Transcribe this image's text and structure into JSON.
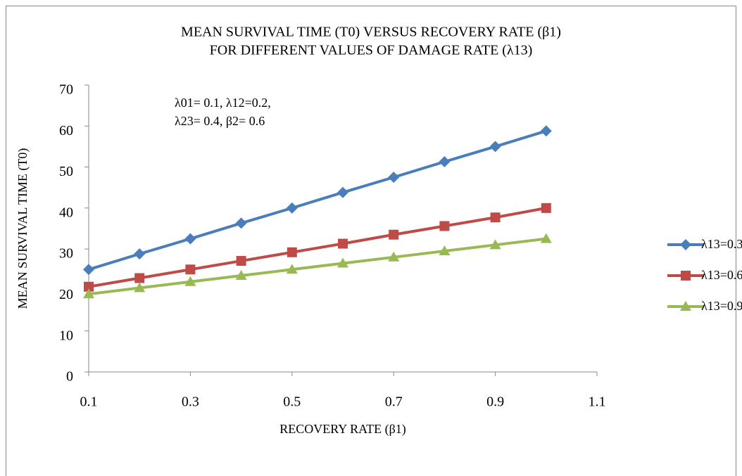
{
  "chart_data": {
    "type": "line",
    "title": [
      "MEAN SURVIVAL TIME (T0) VERSUS RECOVERY RATE (β1)",
      "FOR DIFFERENT VALUES OF DAMAGE RATE (λ13)"
    ],
    "annotation": [
      "λ01= 0.1, λ12=0.2,",
      "λ23= 0.4, β2= 0.6"
    ],
    "x_label": "RECOVERY RATE (β1)",
    "y_label": "MEAN SURVIVAL TIME (T0)",
    "x": [
      0.1,
      0.2,
      0.3,
      0.4,
      0.5,
      0.6,
      0.7,
      0.8,
      0.9,
      1.0
    ],
    "series": [
      {
        "name": "λ13=0.3",
        "color": "#4a7ebb",
        "marker": "diamond",
        "values": [
          25,
          28.8,
          32.5,
          36.3,
          40,
          43.8,
          47.5,
          51.3,
          55,
          58.8
        ]
      },
      {
        "name": "λ13=0.6",
        "color": "#be4b48",
        "marker": "square",
        "values": [
          20.8,
          22.9,
          25,
          27.1,
          29.2,
          31.3,
          33.5,
          35.6,
          37.7,
          40
        ]
      },
      {
        "name": "λ13=0.9",
        "color": "#98b954",
        "marker": "triangle",
        "values": [
          19,
          20.5,
          22,
          23.5,
          25,
          26.5,
          28,
          29.5,
          31,
          32.5
        ]
      }
    ],
    "xlim": [
      0.1,
      1.1
    ],
    "xticks": [
      0.1,
      0.3,
      0.5,
      0.7,
      0.9,
      1.1
    ],
    "ylim": [
      0,
      70
    ],
    "yticks": [
      0,
      10,
      20,
      30,
      40,
      50,
      60,
      70
    ],
    "grid": false,
    "legend": "right"
  }
}
